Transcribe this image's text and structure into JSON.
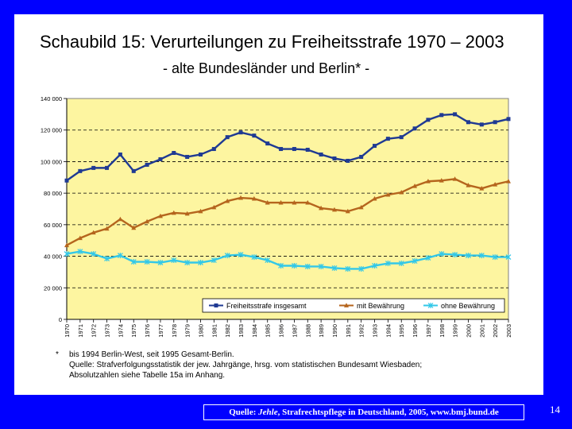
{
  "title": "Schaubild 15: Verurteilungen zu Freiheitsstrafe 1970 – 2003",
  "subtitle": "- alte Bundesländer und Berlin* -",
  "chart_data": {
    "type": "line",
    "title": "Schaubild 15: Verurteilungen zu Freiheitsstrafe 1970 – 2003",
    "subtitle": "- alte Bundesländer und Berlin* -",
    "xlabel": "",
    "ylabel": "",
    "ylim": [
      0,
      140000
    ],
    "yticks": [
      0,
      20000,
      40000,
      60000,
      80000,
      100000,
      120000,
      140000
    ],
    "ytick_labels": [
      "0",
      "20 000",
      "40 000",
      "60 000",
      "80 000",
      "100 000",
      "120 000",
      "140 000"
    ],
    "grid": "horizontal dashed",
    "legend_position": "bottom-right",
    "categories": [
      "1970",
      "1971",
      "1972",
      "1973",
      "1974",
      "1975",
      "1976",
      "1977",
      "1978",
      "1979",
      "1980",
      "1981",
      "1982",
      "1983",
      "1984",
      "1985",
      "1986",
      "1987",
      "1988",
      "1989",
      "1990",
      "1991",
      "1992",
      "1993",
      "1994",
      "1995",
      "1996",
      "1997",
      "1998",
      "1999",
      "2000",
      "2001",
      "2002",
      "2003"
    ],
    "series": [
      {
        "name": "Freiheitsstrafe insgesamt",
        "color": "#1f3a93",
        "marker": "square",
        "values": [
          88000,
          94000,
          96000,
          96000,
          104500,
          94000,
          98000,
          101500,
          105500,
          103000,
          104500,
          108000,
          115500,
          118500,
          116500,
          111500,
          108000,
          108000,
          107500,
          104500,
          102000,
          100500,
          103000,
          110000,
          114500,
          115500,
          121000,
          126500,
          129500,
          130000,
          125000,
          123500,
          125000,
          127000
        ]
      },
      {
        "name": "mit Bewährung",
        "color": "#b5651d",
        "marker": "triangle",
        "values": [
          47000,
          51500,
          55000,
          57500,
          63500,
          58000,
          62000,
          65500,
          67500,
          67000,
          68500,
          71000,
          75000,
          77000,
          76500,
          74000,
          74000,
          74000,
          74000,
          70500,
          69500,
          68500,
          71000,
          76500,
          79000,
          80500,
          84500,
          87500,
          88000,
          89000,
          85000,
          83000,
          85500,
          87500
        ]
      },
      {
        "name": "ohne Bewährung",
        "color": "#33c8e8",
        "marker": "x",
        "values": [
          41500,
          43000,
          41500,
          38500,
          40500,
          36500,
          36500,
          36000,
          37500,
          36000,
          36000,
          37500,
          40500,
          41000,
          39500,
          37500,
          34000,
          34000,
          33500,
          33500,
          32500,
          32000,
          32000,
          34000,
          35500,
          35500,
          37000,
          39000,
          41500,
          41000,
          40500,
          40500,
          39500,
          39500
        ]
      }
    ]
  },
  "footnote": {
    "marker": "*",
    "lines": [
      "bis 1994 Berlin-West, seit 1995 Gesamt-Berlin.",
      "Quelle: Strafverfolgungsstatistik der jew. Jahrgänge, hrsg. vom statistischen Bundesamt Wiesbaden;",
      "Absolutzahlen siehe Tabelle 15a im Anhang."
    ]
  },
  "source": {
    "prefix": "Quelle: ",
    "author": "Jehle",
    "rest": ", Strafrechtspflege in Deutschland, 2005, www.bmj.bund.de"
  },
  "page_number": "14",
  "colors": {
    "background": "#0000ff",
    "panel": "#ffffff",
    "plot_area": "#fdf5a0",
    "series_total": "#1f3a93",
    "series_mit": "#b5651d",
    "series_ohne": "#33c8e8"
  }
}
